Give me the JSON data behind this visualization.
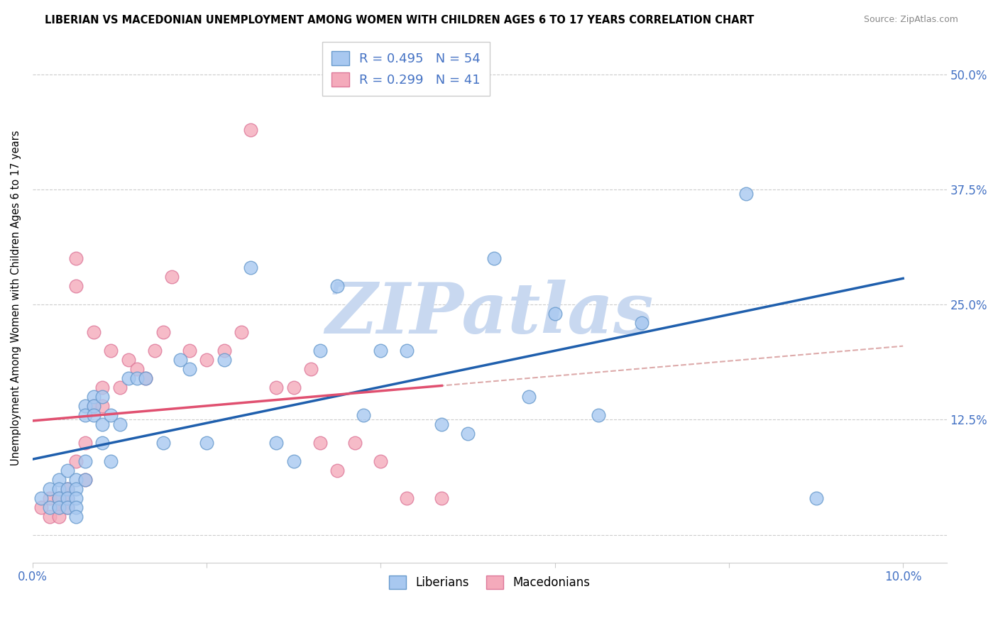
{
  "title": "LIBERIAN VS MACEDONIAN UNEMPLOYMENT AMONG WOMEN WITH CHILDREN AGES 6 TO 17 YEARS CORRELATION CHART",
  "source": "Source: ZipAtlas.com",
  "ylabel": "Unemployment Among Women with Children Ages 6 to 17 years",
  "xlim": [
    0.0,
    0.105
  ],
  "ylim": [
    -0.03,
    0.545
  ],
  "xticks": [
    0.0,
    0.02,
    0.04,
    0.06,
    0.08,
    0.1
  ],
  "xticklabels": [
    "0.0%",
    "",
    "",
    "",
    "",
    "10.0%"
  ],
  "yticks": [
    0.0,
    0.125,
    0.25,
    0.375,
    0.5
  ],
  "right_yticklabels": [
    "",
    "12.5%",
    "25.0%",
    "37.5%",
    "50.0%"
  ],
  "liberian_color": "#A8C8F0",
  "macedonian_color": "#F4AABB",
  "liberian_edge": "#6699CC",
  "macedonian_edge": "#DD7799",
  "liberian_R": 0.495,
  "liberian_N": 54,
  "macedonian_R": 0.299,
  "macedonian_N": 41,
  "legend_text_color": "#4472C4",
  "trendline_blue": "#1F5FAD",
  "trendline_pink": "#E05070",
  "trendline_dashed_color": "#DDAAAA",
  "background_color": "#FFFFFF",
  "grid_color": "#CCCCCC",
  "watermark_text": "ZIPatlas",
  "watermark_color": "#C8D8F0",
  "liberian_x": [
    0.001,
    0.002,
    0.002,
    0.003,
    0.003,
    0.003,
    0.003,
    0.004,
    0.004,
    0.004,
    0.004,
    0.005,
    0.005,
    0.005,
    0.005,
    0.005,
    0.006,
    0.006,
    0.006,
    0.006,
    0.007,
    0.007,
    0.007,
    0.008,
    0.008,
    0.008,
    0.009,
    0.009,
    0.01,
    0.011,
    0.012,
    0.013,
    0.015,
    0.017,
    0.018,
    0.02,
    0.022,
    0.025,
    0.028,
    0.03,
    0.033,
    0.035,
    0.038,
    0.04,
    0.043,
    0.047,
    0.05,
    0.053,
    0.057,
    0.06,
    0.065,
    0.07,
    0.082,
    0.09
  ],
  "liberian_y": [
    0.04,
    0.05,
    0.03,
    0.06,
    0.05,
    0.04,
    0.03,
    0.07,
    0.05,
    0.04,
    0.03,
    0.06,
    0.05,
    0.04,
    0.03,
    0.02,
    0.14,
    0.13,
    0.08,
    0.06,
    0.15,
    0.14,
    0.13,
    0.15,
    0.12,
    0.1,
    0.13,
    0.08,
    0.12,
    0.17,
    0.17,
    0.17,
    0.1,
    0.19,
    0.18,
    0.1,
    0.19,
    0.29,
    0.1,
    0.08,
    0.2,
    0.27,
    0.13,
    0.2,
    0.2,
    0.12,
    0.11,
    0.3,
    0.15,
    0.24,
    0.13,
    0.23,
    0.37,
    0.04
  ],
  "macedonian_x": [
    0.001,
    0.002,
    0.002,
    0.003,
    0.003,
    0.003,
    0.003,
    0.004,
    0.004,
    0.004,
    0.005,
    0.005,
    0.005,
    0.006,
    0.006,
    0.007,
    0.007,
    0.008,
    0.008,
    0.009,
    0.01,
    0.011,
    0.012,
    0.013,
    0.014,
    0.015,
    0.016,
    0.018,
    0.02,
    0.022,
    0.024,
    0.025,
    0.028,
    0.03,
    0.032,
    0.033,
    0.035,
    0.037,
    0.04,
    0.043,
    0.047
  ],
  "macedonian_y": [
    0.03,
    0.02,
    0.04,
    0.04,
    0.03,
    0.03,
    0.02,
    0.05,
    0.04,
    0.03,
    0.27,
    0.3,
    0.08,
    0.1,
    0.06,
    0.14,
    0.22,
    0.16,
    0.14,
    0.2,
    0.16,
    0.19,
    0.18,
    0.17,
    0.2,
    0.22,
    0.28,
    0.2,
    0.19,
    0.2,
    0.22,
    0.44,
    0.16,
    0.16,
    0.18,
    0.1,
    0.07,
    0.1,
    0.08,
    0.04,
    0.04
  ]
}
